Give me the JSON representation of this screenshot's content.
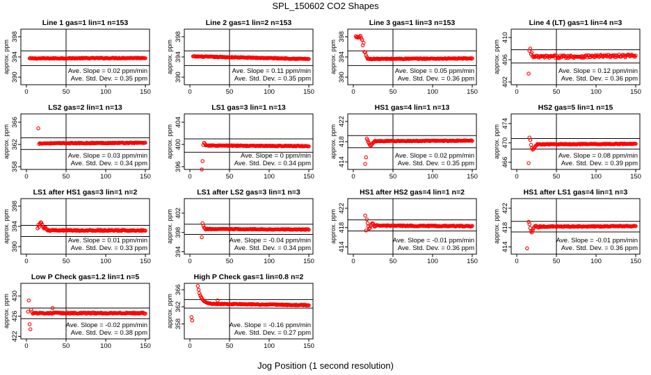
{
  "title": "SPL_150602  CO2 Shapes",
  "xlabel": "Jog Position (1 second resolution)",
  "panel_ylabel": "approx. ppm",
  "slope_prefix": "Ave. Slope = ",
  "slope_unit": " ppm/min",
  "std_prefix": "Ave. Std. Dev. = ",
  "std_unit": " ppm",
  "colors": {
    "points": "#ff0000",
    "axes": "#000000",
    "background": "#ffffff"
  },
  "chart_data": [
    {
      "type": "scatter",
      "title": "Line 1 gas=1 lin=1 n=153",
      "xlim": [
        0,
        150
      ],
      "xticks": [
        0,
        50,
        100,
        150
      ],
      "ylim": [
        388.5,
        399.5
      ],
      "yticks": [
        390,
        394,
        398
      ],
      "hlines": [
        395.2,
        392.3
      ],
      "vline": 50,
      "slope": "0.02",
      "std": "0.35",
      "shape": {
        "base": 393.7,
        "end": 393.8,
        "noise": 0.08,
        "start": 4,
        "early": []
      }
    },
    {
      "type": "scatter",
      "title": "Line 2 gas=1 lin=2 n=153",
      "xlim": [
        0,
        150
      ],
      "xticks": [
        0,
        50,
        100,
        150
      ],
      "ylim": [
        388.5,
        399.5
      ],
      "yticks": [
        390,
        394,
        398
      ],
      "hlines": [
        395.2,
        392.3
      ],
      "vline": 50,
      "slope": "0.11",
      "std": "0.35",
      "shape": {
        "base": 394.1,
        "end": 393.6,
        "noise": 0.08,
        "start": 4,
        "early": []
      }
    },
    {
      "type": "scatter",
      "title": "Line 3 gas=1 lin=3 n=153",
      "xlim": [
        0,
        150
      ],
      "xticks": [
        0,
        50,
        100,
        150
      ],
      "ylim": [
        388.5,
        399.5
      ],
      "yticks": [
        390,
        394,
        398
      ],
      "hlines": [
        395.2,
        392.3
      ],
      "vline": 50,
      "slope": "0.05",
      "std": "0.36",
      "shape": {
        "base": 393.6,
        "end": 393.7,
        "noise": 0.08,
        "start": 18,
        "early": [
          [
            3,
            398.1
          ],
          [
            4,
            397.9
          ],
          [
            5,
            398.0
          ],
          [
            6,
            397.8
          ],
          [
            7,
            397.9
          ],
          [
            8,
            398.0
          ],
          [
            9,
            398.2
          ],
          [
            10,
            397.7
          ],
          [
            11,
            397.4
          ],
          [
            12,
            396.3
          ],
          [
            13,
            396.8
          ],
          [
            14,
            395.0
          ],
          [
            15,
            394.9
          ],
          [
            16,
            394.3
          ],
          [
            17,
            394.0
          ]
        ]
      }
    },
    {
      "type": "scatter",
      "title": "Line 4 (LT) gas=1 lin=4 n=3",
      "xlim": [
        0,
        150
      ],
      "xticks": [
        0,
        50,
        100,
        150
      ],
      "ylim": [
        401.5,
        411.5
      ],
      "yticks": [
        402,
        406,
        410
      ],
      "hlines": [
        407.8,
        405.4
      ],
      "vline": 50,
      "slope": "0.12",
      "std": "0.36",
      "shape": {
        "base": 406.5,
        "end": 406.7,
        "noise": 0.25,
        "start": 20,
        "early": [
          [
            15,
            403.5
          ],
          [
            16,
            407.6
          ],
          [
            17,
            408.0
          ],
          [
            18,
            407.0
          ],
          [
            19,
            407.3
          ]
        ]
      }
    },
    {
      "type": "scatter",
      "title": "LS2 gas=2 lin=1 n=13",
      "xlim": [
        0,
        150
      ],
      "xticks": [
        0,
        50,
        100,
        150
      ],
      "ylim": [
        357.5,
        367.5
      ],
      "yticks": [
        358,
        362,
        366
      ],
      "hlines": [
        363.2,
        361.1
      ],
      "vline": 50,
      "slope": "0.03",
      "std": "0.34",
      "shape": {
        "base": 362.2,
        "end": 362.3,
        "noise": 0.07,
        "start": 17,
        "early": [
          [
            15,
            364.9
          ],
          [
            16,
            362.1
          ]
        ]
      }
    },
    {
      "type": "scatter",
      "title": "LS1 gas=3 lin=1 n=13",
      "xlim": [
        0,
        150
      ],
      "xticks": [
        0,
        50,
        100,
        150
      ],
      "ylim": [
        395.5,
        405.5
      ],
      "yticks": [
        396,
        400,
        404
      ],
      "hlines": [
        401.0,
        398.6
      ],
      "vline": 50,
      "slope": "0",
      "std": "0.34",
      "shape": {
        "base": 399.8,
        "end": 399.7,
        "noise": 0.07,
        "start": 20,
        "early": [
          [
            15,
            395.2
          ],
          [
            16,
            397.0
          ],
          [
            17,
            399.9
          ],
          [
            18,
            400.3
          ],
          [
            19,
            400.1
          ]
        ]
      }
    },
    {
      "type": "scatter",
      "title": "HS1 gas=4 lin=1 n=13",
      "xlim": [
        0,
        150
      ],
      "xticks": [
        0,
        50,
        100,
        150
      ],
      "ylim": [
        412.5,
        423.5
      ],
      "yticks": [
        414,
        418,
        422
      ],
      "hlines": [
        419.2,
        416.8
      ],
      "vline": 50,
      "slope": "0.02",
      "std": "0.35",
      "shape": {
        "base": 418.1,
        "end": 418.2,
        "noise": 0.07,
        "start": 27,
        "early": [
          [
            15,
            413.6
          ],
          [
            16,
            414.9
          ],
          [
            17,
            418.6
          ],
          [
            18,
            418.3
          ],
          [
            19,
            417.9
          ],
          [
            20,
            417.6
          ],
          [
            21,
            417.3
          ],
          [
            22,
            417.2
          ],
          [
            23,
            417.4
          ],
          [
            24,
            417.6
          ],
          [
            25,
            417.8
          ],
          [
            26,
            417.9
          ]
        ]
      }
    },
    {
      "type": "scatter",
      "title": "HS2 gas=5 lin=1 n=15",
      "xlim": [
        0,
        150
      ],
      "xticks": [
        0,
        50,
        100,
        150
      ],
      "ylim": [
        464.5,
        476.0
      ],
      "yticks": [
        466,
        470,
        474
      ],
      "hlines": [
        470.9,
        468.7
      ],
      "vline": 50,
      "slope": "0.08",
      "std": "0.39",
      "shape": {
        "base": 469.7,
        "end": 469.8,
        "noise": 0.08,
        "start": 26,
        "early": [
          [
            15,
            465.8
          ],
          [
            16,
            471.1
          ],
          [
            17,
            470.6
          ],
          [
            18,
            469.6
          ],
          [
            19,
            468.9
          ],
          [
            20,
            468.6
          ],
          [
            21,
            468.7
          ],
          [
            22,
            469.0
          ],
          [
            23,
            469.2
          ],
          [
            24,
            469.4
          ],
          [
            25,
            469.5
          ]
        ]
      }
    },
    {
      "type": "scatter",
      "title": "LS1 after HS1 gas=3 lin=1 n=2",
      "xlim": [
        0,
        150
      ],
      "xticks": [
        0,
        50,
        100,
        150
      ],
      "ylim": [
        388.5,
        399.5
      ],
      "yticks": [
        390,
        394,
        398
      ],
      "hlines": [
        394.2,
        392.0
      ],
      "vline": 50,
      "slope": "0.01",
      "std": "0.33",
      "shape": {
        "base": 393.2,
        "end": 393.2,
        "noise": 0.12,
        "start": 26,
        "early": [
          [
            14,
            393.6
          ],
          [
            15,
            394.3
          ],
          [
            16,
            393.9
          ],
          [
            17,
            394.5
          ],
          [
            18,
            394.8
          ],
          [
            19,
            394.7
          ],
          [
            20,
            394.3
          ],
          [
            21,
            393.9
          ],
          [
            22,
            393.6
          ],
          [
            23,
            393.7
          ],
          [
            24,
            393.8
          ],
          [
            25,
            393.5
          ]
        ]
      }
    },
    {
      "type": "scatter",
      "title": "LS1 after LS2 gas=3 lin=1 n=3",
      "xlim": [
        0,
        150
      ],
      "xticks": [
        0,
        50,
        100,
        150
      ],
      "ylim": [
        393.5,
        405.0
      ],
      "yticks": [
        394,
        398,
        402
      ],
      "hlines": [
        399.7,
        397.6
      ],
      "vline": 50,
      "slope": "-0.04",
      "std": "0.34",
      "shape": {
        "base": 398.7,
        "end": 398.6,
        "noise": 0.08,
        "start": 22,
        "early": [
          [
            15,
            397.0
          ],
          [
            16,
            399.9
          ],
          [
            17,
            399.4
          ],
          [
            18,
            399.0
          ],
          [
            19,
            398.8
          ],
          [
            20,
            398.6
          ],
          [
            21,
            398.7
          ]
        ]
      }
    },
    {
      "type": "scatter",
      "title": "HS1 after HS2 gas=4 lin=1 n=2",
      "xlim": [
        0,
        150
      ],
      "xticks": [
        0,
        50,
        100,
        150
      ],
      "ylim": [
        412.5,
        424.0
      ],
      "yticks": [
        414,
        418,
        422
      ],
      "hlines": [
        419.6,
        417.3
      ],
      "vline": 50,
      "slope": "-0.01",
      "std": "0.36",
      "shape": {
        "base": 418.4,
        "end": 418.3,
        "noise": 0.1,
        "start": 30,
        "early": [
          [
            15,
            420.5
          ],
          [
            16,
            417.4
          ],
          [
            17,
            419.7
          ],
          [
            18,
            418.9
          ],
          [
            19,
            418.2
          ],
          [
            20,
            417.8
          ],
          [
            21,
            417.9
          ],
          [
            22,
            418.4
          ],
          [
            23,
            418.7
          ],
          [
            24,
            418.9
          ],
          [
            25,
            418.8
          ],
          [
            26,
            418.4
          ],
          [
            27,
            418.2
          ],
          [
            28,
            418.3
          ],
          [
            29,
            418.5
          ]
        ]
      }
    },
    {
      "type": "scatter",
      "title": "HS1 after LS1 gas=4 lin=1 n=3",
      "xlim": [
        0,
        150
      ],
      "xticks": [
        0,
        50,
        100,
        150
      ],
      "ylim": [
        412.5,
        424.0
      ],
      "yticks": [
        414,
        418,
        422
      ],
      "hlines": [
        419.3,
        417.1
      ],
      "vline": 50,
      "slope": "-0.01",
      "std": "0.36",
      "shape": {
        "base": 418.2,
        "end": 418.3,
        "noise": 0.1,
        "start": 30,
        "early": [
          [
            13,
            413.7
          ],
          [
            15,
            419.2
          ],
          [
            16,
            418.7
          ],
          [
            17,
            417.9
          ],
          [
            18,
            417.2
          ],
          [
            19,
            417.0
          ],
          [
            20,
            417.4
          ],
          [
            21,
            417.8
          ],
          [
            22,
            418.1
          ],
          [
            23,
            418.3
          ],
          [
            24,
            418.4
          ],
          [
            25,
            418.3
          ],
          [
            26,
            418.1
          ],
          [
            27,
            418.0
          ],
          [
            28,
            418.2
          ],
          [
            29,
            418.3
          ]
        ]
      }
    },
    {
      "type": "scatter",
      "title": "Low P Check gas=1.2 lin=1 n=5",
      "xlim": [
        0,
        150
      ],
      "xticks": [
        0,
        50,
        100,
        150
      ],
      "ylim": [
        421.5,
        432.5
      ],
      "yticks": [
        422,
        426,
        430
      ],
      "hlines": [
        427.6,
        425.5
      ],
      "vline": 50,
      "slope": "-0.02",
      "std": "0.38",
      "shape": {
        "base": 426.6,
        "end": 426.6,
        "noise": 0.12,
        "start": 8,
        "early": [
          [
            2,
            426.9
          ],
          [
            3,
            429.1
          ],
          [
            4,
            424.4
          ],
          [
            5,
            423.4
          ],
          [
            6,
            427.3
          ],
          [
            7,
            426.8
          ],
          [
            33,
            427.6
          ]
        ]
      }
    },
    {
      "type": "scatter",
      "title": "High P Check gas=1 lin=0.8 n=2",
      "xlim": [
        0,
        150
      ],
      "xticks": [
        0,
        50,
        100,
        150
      ],
      "ylim": [
        354.5,
        367.5
      ],
      "yticks": [
        358,
        362,
        366
      ],
      "hlines": [
        363.7,
        361.7
      ],
      "vline": 50,
      "slope": "-0.16",
      "std": "0.27",
      "shape": {
        "base": 362.7,
        "end": 362.4,
        "noise": 0.09,
        "start": 28,
        "early": [
          [
            2,
            359.6
          ],
          [
            3,
            358.8
          ],
          [
            10,
            366.9
          ],
          [
            11,
            366.0
          ],
          [
            12,
            365.2
          ],
          [
            13,
            364.7
          ],
          [
            14,
            364.3
          ],
          [
            15,
            364.0
          ],
          [
            16,
            363.7
          ],
          [
            17,
            363.5
          ],
          [
            18,
            363.3
          ],
          [
            19,
            363.2
          ],
          [
            20,
            363.1
          ],
          [
            21,
            363.0
          ],
          [
            22,
            362.9
          ],
          [
            23,
            362.9
          ],
          [
            24,
            362.8
          ],
          [
            25,
            362.8
          ],
          [
            26,
            362.8
          ],
          [
            27,
            362.7
          ],
          [
            35,
            363.5
          ]
        ]
      }
    }
  ]
}
